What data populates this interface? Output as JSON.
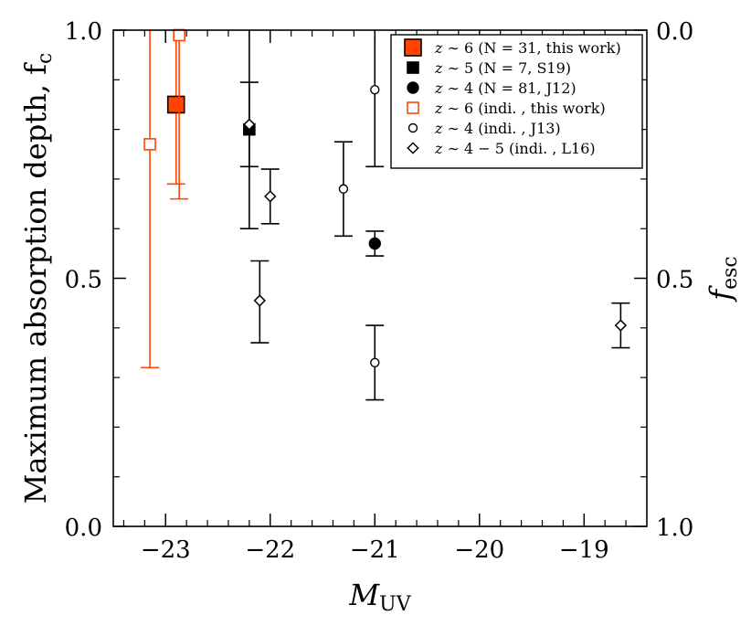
{
  "chart_data": {
    "type": "scatter",
    "xlabel": {
      "main": "M",
      "sub": "UV"
    },
    "ylabel": {
      "main": "Maximum absorption depth,  f",
      "sub": "c"
    },
    "y2label": {
      "main": "f",
      "sub": "esc"
    },
    "xlim": [
      -23.5,
      -18.4
    ],
    "ylim": [
      0.0,
      1.0
    ],
    "xticks": [
      -23,
      -22,
      -21,
      -20,
      -19
    ],
    "xtick_labels": [
      "−23",
      "−22",
      "−21",
      "−20",
      "−19"
    ],
    "yticks": [
      0.0,
      0.5,
      1.0
    ],
    "ytick_labels": [
      "0.0",
      "0.5",
      "1.0"
    ],
    "y2ticks": [
      0.0,
      0.5,
      1.0
    ],
    "y2tick_labels": [
      "1.0",
      "0.5",
      "0.0"
    ],
    "grid": false,
    "legend_position": "top-right",
    "series": [
      {
        "name": "z∼6 (N=31, this work)",
        "marker": "square",
        "filled": true,
        "color": "#ff4500",
        "edge": "#000000",
        "size": "large",
        "points": [
          {
            "x": -22.9,
            "y": 0.85,
            "yerr_low": 0.69,
            "yerr_high": 1.0
          }
        ]
      },
      {
        "name": "z∼5 (N=7, S19)",
        "marker": "square",
        "filled": true,
        "color": "#000000",
        "edge": "#000000",
        "size": "medium",
        "points": [
          {
            "x": -22.2,
            "y": 0.8,
            "yerr_low": 0.6,
            "yerr_high": 1.0
          }
        ]
      },
      {
        "name": "z∼4 (N=81, J12)",
        "marker": "circle",
        "filled": true,
        "color": "#000000",
        "edge": "#000000",
        "size": "medium",
        "points": [
          {
            "x": -21.0,
            "y": 0.57,
            "yerr_low": 0.545,
            "yerr_high": 0.595
          }
        ]
      },
      {
        "name": "z∼6 (indi., this work)",
        "marker": "square",
        "filled": false,
        "color": "#ff4500",
        "edge": "#ff4500",
        "size": "medium",
        "points": [
          {
            "x": -23.15,
            "y": 0.77,
            "yerr_low": 0.32,
            "yerr_high": 1.0
          },
          {
            "x": -22.87,
            "y": 0.99,
            "yerr_low": 0.66,
            "yerr_high": 1.0
          }
        ]
      },
      {
        "name": "z∼4 (indi., J13)",
        "marker": "circle",
        "filled": false,
        "color": "#000000",
        "edge": "#000000",
        "size": "small",
        "points": [
          {
            "x": -21.3,
            "y": 0.68,
            "yerr_low": 0.585,
            "yerr_high": 0.775
          },
          {
            "x": -21.0,
            "y": 0.33,
            "yerr_low": 0.255,
            "yerr_high": 0.405
          },
          {
            "x": -21.0,
            "y": 0.88,
            "yerr_low": 0.725,
            "yerr_high": 1.0
          }
        ]
      },
      {
        "name": "z∼4−5 (indi., L16)",
        "marker": "diamond",
        "filled": false,
        "color": "#000000",
        "edge": "#000000",
        "size": "small",
        "points": [
          {
            "x": -22.2,
            "y": 0.81,
            "yerr_low": 0.725,
            "yerr_high": 0.895
          },
          {
            "x": -22.0,
            "y": 0.665,
            "yerr_low": 0.61,
            "yerr_high": 0.72
          },
          {
            "x": -22.1,
            "y": 0.455,
            "yerr_low": 0.37,
            "yerr_high": 0.535
          },
          {
            "x": -18.65,
            "y": 0.405,
            "yerr_low": 0.36,
            "yerr_high": 0.45
          }
        ]
      }
    ],
    "legend_entries": [
      {
        "z": "z",
        "rest": " ∼ 6 (N = 31, this work)"
      },
      {
        "z": "z",
        "rest": " ∼ 5 (N = 7, S19)"
      },
      {
        "z": "z",
        "rest": " ∼ 4 (N = 81, J12)"
      },
      {
        "z": "z",
        "rest": " ∼ 6 (indi. ,  this work)"
      },
      {
        "z": "z",
        "rest": " ∼ 4 (indi. ,  J13)"
      },
      {
        "z": "z",
        "rest": " ∼ 4 − 5 (indi. ,  L16)"
      }
    ]
  }
}
